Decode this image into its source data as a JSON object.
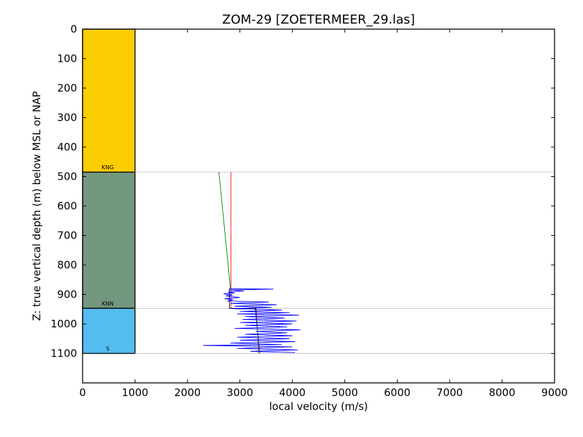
{
  "chart_data": {
    "type": "line",
    "title": "ZOM-29 [ZOETERMEER_29.las]",
    "xlabel": "local velocity (m/s)",
    "ylabel": "Z: true vertical depth (m) below MSL or NAP",
    "xlim": [
      0,
      9000
    ],
    "ylim": [
      1200,
      0
    ],
    "x_ticks": [
      0,
      1000,
      2000,
      3000,
      4000,
      5000,
      6000,
      7000,
      8000,
      9000
    ],
    "y_ticks": [
      0,
      100,
      200,
      300,
      400,
      500,
      600,
      700,
      800,
      900,
      1000,
      1100
    ],
    "grid": false,
    "formations": [
      {
        "name": "NG",
        "top": 0,
        "base": 485,
        "color": "#fccd00",
        "label": "KNG"
      },
      {
        "name": "KN",
        "top": 485,
        "base": 947,
        "color": "#73977f",
        "label": "KNN"
      },
      {
        "name": "S",
        "top": 947,
        "base": 1100,
        "color": "#55bcef",
        "label": "S"
      }
    ],
    "series": [
      {
        "color": "#008000",
        "x": [
          2600,
          2820
        ],
        "y": [
          485,
          882
        ]
      },
      {
        "color": "#ff0000",
        "x": [
          2830,
          2830
        ],
        "y": [
          485,
          947
        ]
      },
      {
        "color": "#ff0000",
        "x": [
          3310,
          3360
        ],
        "y": [
          947,
          1100
        ]
      },
      {
        "color": "#008000",
        "x": [
          3290,
          3380
        ],
        "y": [
          947,
          1100
        ]
      },
      {
        "color": "#000000",
        "x": [
          2800,
          2800,
          3300,
          3300
        ],
        "y": [
          880,
          947,
          947,
          960
        ]
      },
      {
        "color": "#0000ff",
        "x": [
          2800,
          3640,
          2790,
          3080,
          2770,
          2900,
          2690,
          2860,
          2730,
          3000,
          2710,
          2870,
          2760,
          3550,
          2820,
          3700,
          2900,
          3600,
          2850,
          3800,
          3000,
          3950,
          2950,
          4130,
          3100,
          3850,
          3050,
          4080,
          3000,
          4000,
          3100,
          3900,
          2900,
          4150,
          3300,
          3900,
          3100,
          4000,
          2950,
          3950,
          3000,
          4050,
          2820,
          3800,
          2300,
          4000,
          2950,
          4100,
          3200,
          4050
        ],
        "y": [
          880,
          882,
          885,
          888,
          892,
          895,
          898,
          902,
          905,
          910,
          914,
          918,
          922,
          926,
          930,
          935,
          940,
          944,
          948,
          953,
          958,
          962,
          966,
          970,
          975,
          980,
          985,
          990,
          995,
          1000,
          1005,
          1010,
          1015,
          1020,
          1025,
          1030,
          1035,
          1040,
          1045,
          1050,
          1055,
          1060,
          1065,
          1070,
          1073,
          1078,
          1083,
          1088,
          1093,
          1097
        ]
      }
    ]
  }
}
